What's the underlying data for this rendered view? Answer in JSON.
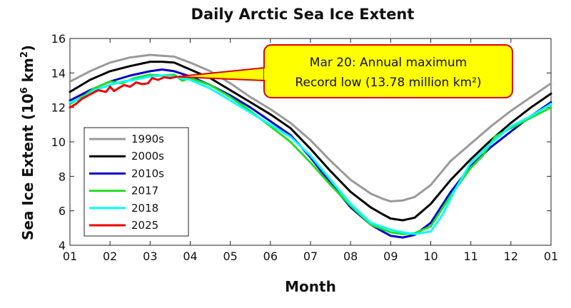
{
  "chart_data": {
    "type": "line",
    "title": "Daily Arctic Sea Ice Extent",
    "xlabel": "Month",
    "ylabel_main": "Sea Ice Extent (10",
    "ylabel_sup": "6",
    "ylabel_unit": " km",
    "ylabel_sup2": "2",
    "ylabel_end": ")",
    "xlim": [
      1,
      13
    ],
    "ylim": [
      4,
      16
    ],
    "xticks": [
      1,
      2,
      3,
      4,
      5,
      6,
      7,
      8,
      9,
      10,
      11,
      12,
      13
    ],
    "xtick_labels": [
      "01",
      "02",
      "03",
      "04",
      "05",
      "06",
      "07",
      "08",
      "09",
      "10",
      "11",
      "12",
      "01"
    ],
    "yticks": [
      4,
      6,
      8,
      10,
      12,
      14,
      16
    ],
    "ytick_labels": [
      "4",
      "6",
      "8",
      "10",
      "12",
      "14",
      "16"
    ],
    "legend_position": "lower-left",
    "annotation": {
      "line1": "Mar 20: Annual maximum",
      "line2": "Record low (13.78 million km²)",
      "x": 3.65,
      "y": 13.78,
      "fill": "#ffff00",
      "border": "#e00000"
    },
    "series": [
      {
        "name": "1990s",
        "color": "#999999",
        "x": [
          1,
          1.5,
          2,
          2.5,
          3,
          3.3,
          3.6,
          4,
          4.5,
          5,
          5.5,
          6,
          6.5,
          7,
          7.5,
          8,
          8.5,
          8.8,
          9,
          9.3,
          9.6,
          10,
          10.5,
          11,
          11.5,
          12,
          12.5,
          13
        ],
        "y": [
          13.5,
          14.1,
          14.6,
          14.9,
          15.05,
          15.0,
          14.95,
          14.6,
          14.1,
          13.4,
          12.6,
          11.9,
          11.1,
          10.1,
          8.9,
          7.8,
          7.0,
          6.7,
          6.55,
          6.6,
          6.8,
          7.5,
          8.9,
          9.9,
          10.9,
          11.8,
          12.6,
          13.4
        ]
      },
      {
        "name": "2000s",
        "color": "#000000",
        "x": [
          1,
          1.5,
          2,
          2.5,
          3,
          3.3,
          3.6,
          4,
          4.5,
          5,
          5.5,
          6,
          6.5,
          7,
          7.5,
          8,
          8.5,
          8.8,
          9,
          9.3,
          9.6,
          10,
          10.5,
          11,
          11.5,
          12,
          12.5,
          13
        ],
        "y": [
          12.9,
          13.6,
          14.1,
          14.4,
          14.65,
          14.65,
          14.6,
          14.2,
          13.7,
          13.0,
          12.3,
          11.6,
          10.8,
          9.6,
          8.3,
          7.1,
          6.2,
          5.8,
          5.55,
          5.45,
          5.6,
          6.4,
          7.8,
          9.0,
          10.1,
          11.1,
          12.0,
          12.8
        ]
      },
      {
        "name": "2010s",
        "color": "#0000cc",
        "x": [
          1,
          1.5,
          2,
          2.5,
          3,
          3.3,
          3.6,
          4,
          4.5,
          5,
          5.5,
          6,
          6.5,
          7,
          7.5,
          8,
          8.5,
          8.8,
          9,
          9.3,
          9.6,
          10,
          10.5,
          11,
          11.5,
          12,
          12.5,
          13
        ],
        "y": [
          12.4,
          13.0,
          13.5,
          13.85,
          14.1,
          14.2,
          14.1,
          13.8,
          13.3,
          12.7,
          12.0,
          11.2,
          10.4,
          9.1,
          7.6,
          6.2,
          5.2,
          4.8,
          4.55,
          4.45,
          4.6,
          5.3,
          7.1,
          8.6,
          9.7,
          10.6,
          11.5,
          12.3
        ]
      },
      {
        "name": "2017",
        "color": "#22dd22",
        "x": [
          1,
          1.3,
          1.6,
          2,
          2.3,
          2.6,
          3,
          3.3,
          3.6,
          3.8,
          4,
          4.5,
          5,
          5.5,
          6,
          6.5,
          7,
          7.5,
          8,
          8.5,
          9,
          9.3,
          9.6,
          10,
          10.5,
          11,
          11.3,
          11.6,
          12,
          12.5,
          13
        ],
        "y": [
          12.2,
          12.6,
          13.1,
          13.5,
          13.4,
          13.7,
          13.9,
          13.85,
          13.9,
          13.55,
          13.7,
          13.3,
          12.6,
          11.8,
          10.9,
          10.0,
          8.8,
          7.5,
          6.3,
          5.2,
          4.75,
          4.65,
          4.7,
          5.1,
          6.9,
          8.5,
          9.2,
          10.3,
          10.8,
          11.4,
          12.0
        ]
      },
      {
        "name": "2018",
        "color": "#00ffff",
        "x": [
          1,
          1.3,
          1.6,
          2,
          2.3,
          2.6,
          3,
          3.3,
          3.6,
          4,
          4.5,
          5,
          5.5,
          6,
          6.5,
          7,
          7.5,
          8,
          8.5,
          9,
          9.3,
          9.6,
          10,
          10.3,
          10.6,
          11,
          11.5,
          12,
          12.5,
          13
        ],
        "y": [
          12.3,
          12.5,
          13.0,
          13.3,
          13.5,
          13.6,
          13.8,
          13.85,
          13.8,
          13.6,
          13.1,
          12.4,
          11.7,
          11.0,
          10.3,
          9.2,
          7.8,
          6.4,
          5.3,
          4.9,
          4.75,
          4.65,
          4.8,
          5.8,
          7.2,
          8.8,
          9.9,
          10.9,
          11.5,
          12.2
        ]
      },
      {
        "name": "2025",
        "color": "#ee0000",
        "x": [
          1,
          1.15,
          1.3,
          1.5,
          1.7,
          1.9,
          2.0,
          2.1,
          2.2,
          2.35,
          2.5,
          2.65,
          2.8,
          2.95,
          3.05,
          3.2,
          3.35,
          3.5,
          3.65
        ],
        "y": [
          12.0,
          12.2,
          12.5,
          12.75,
          13.0,
          12.9,
          13.2,
          12.95,
          13.1,
          13.3,
          13.2,
          13.45,
          13.35,
          13.4,
          13.7,
          13.6,
          13.75,
          13.7,
          13.78
        ]
      }
    ]
  }
}
